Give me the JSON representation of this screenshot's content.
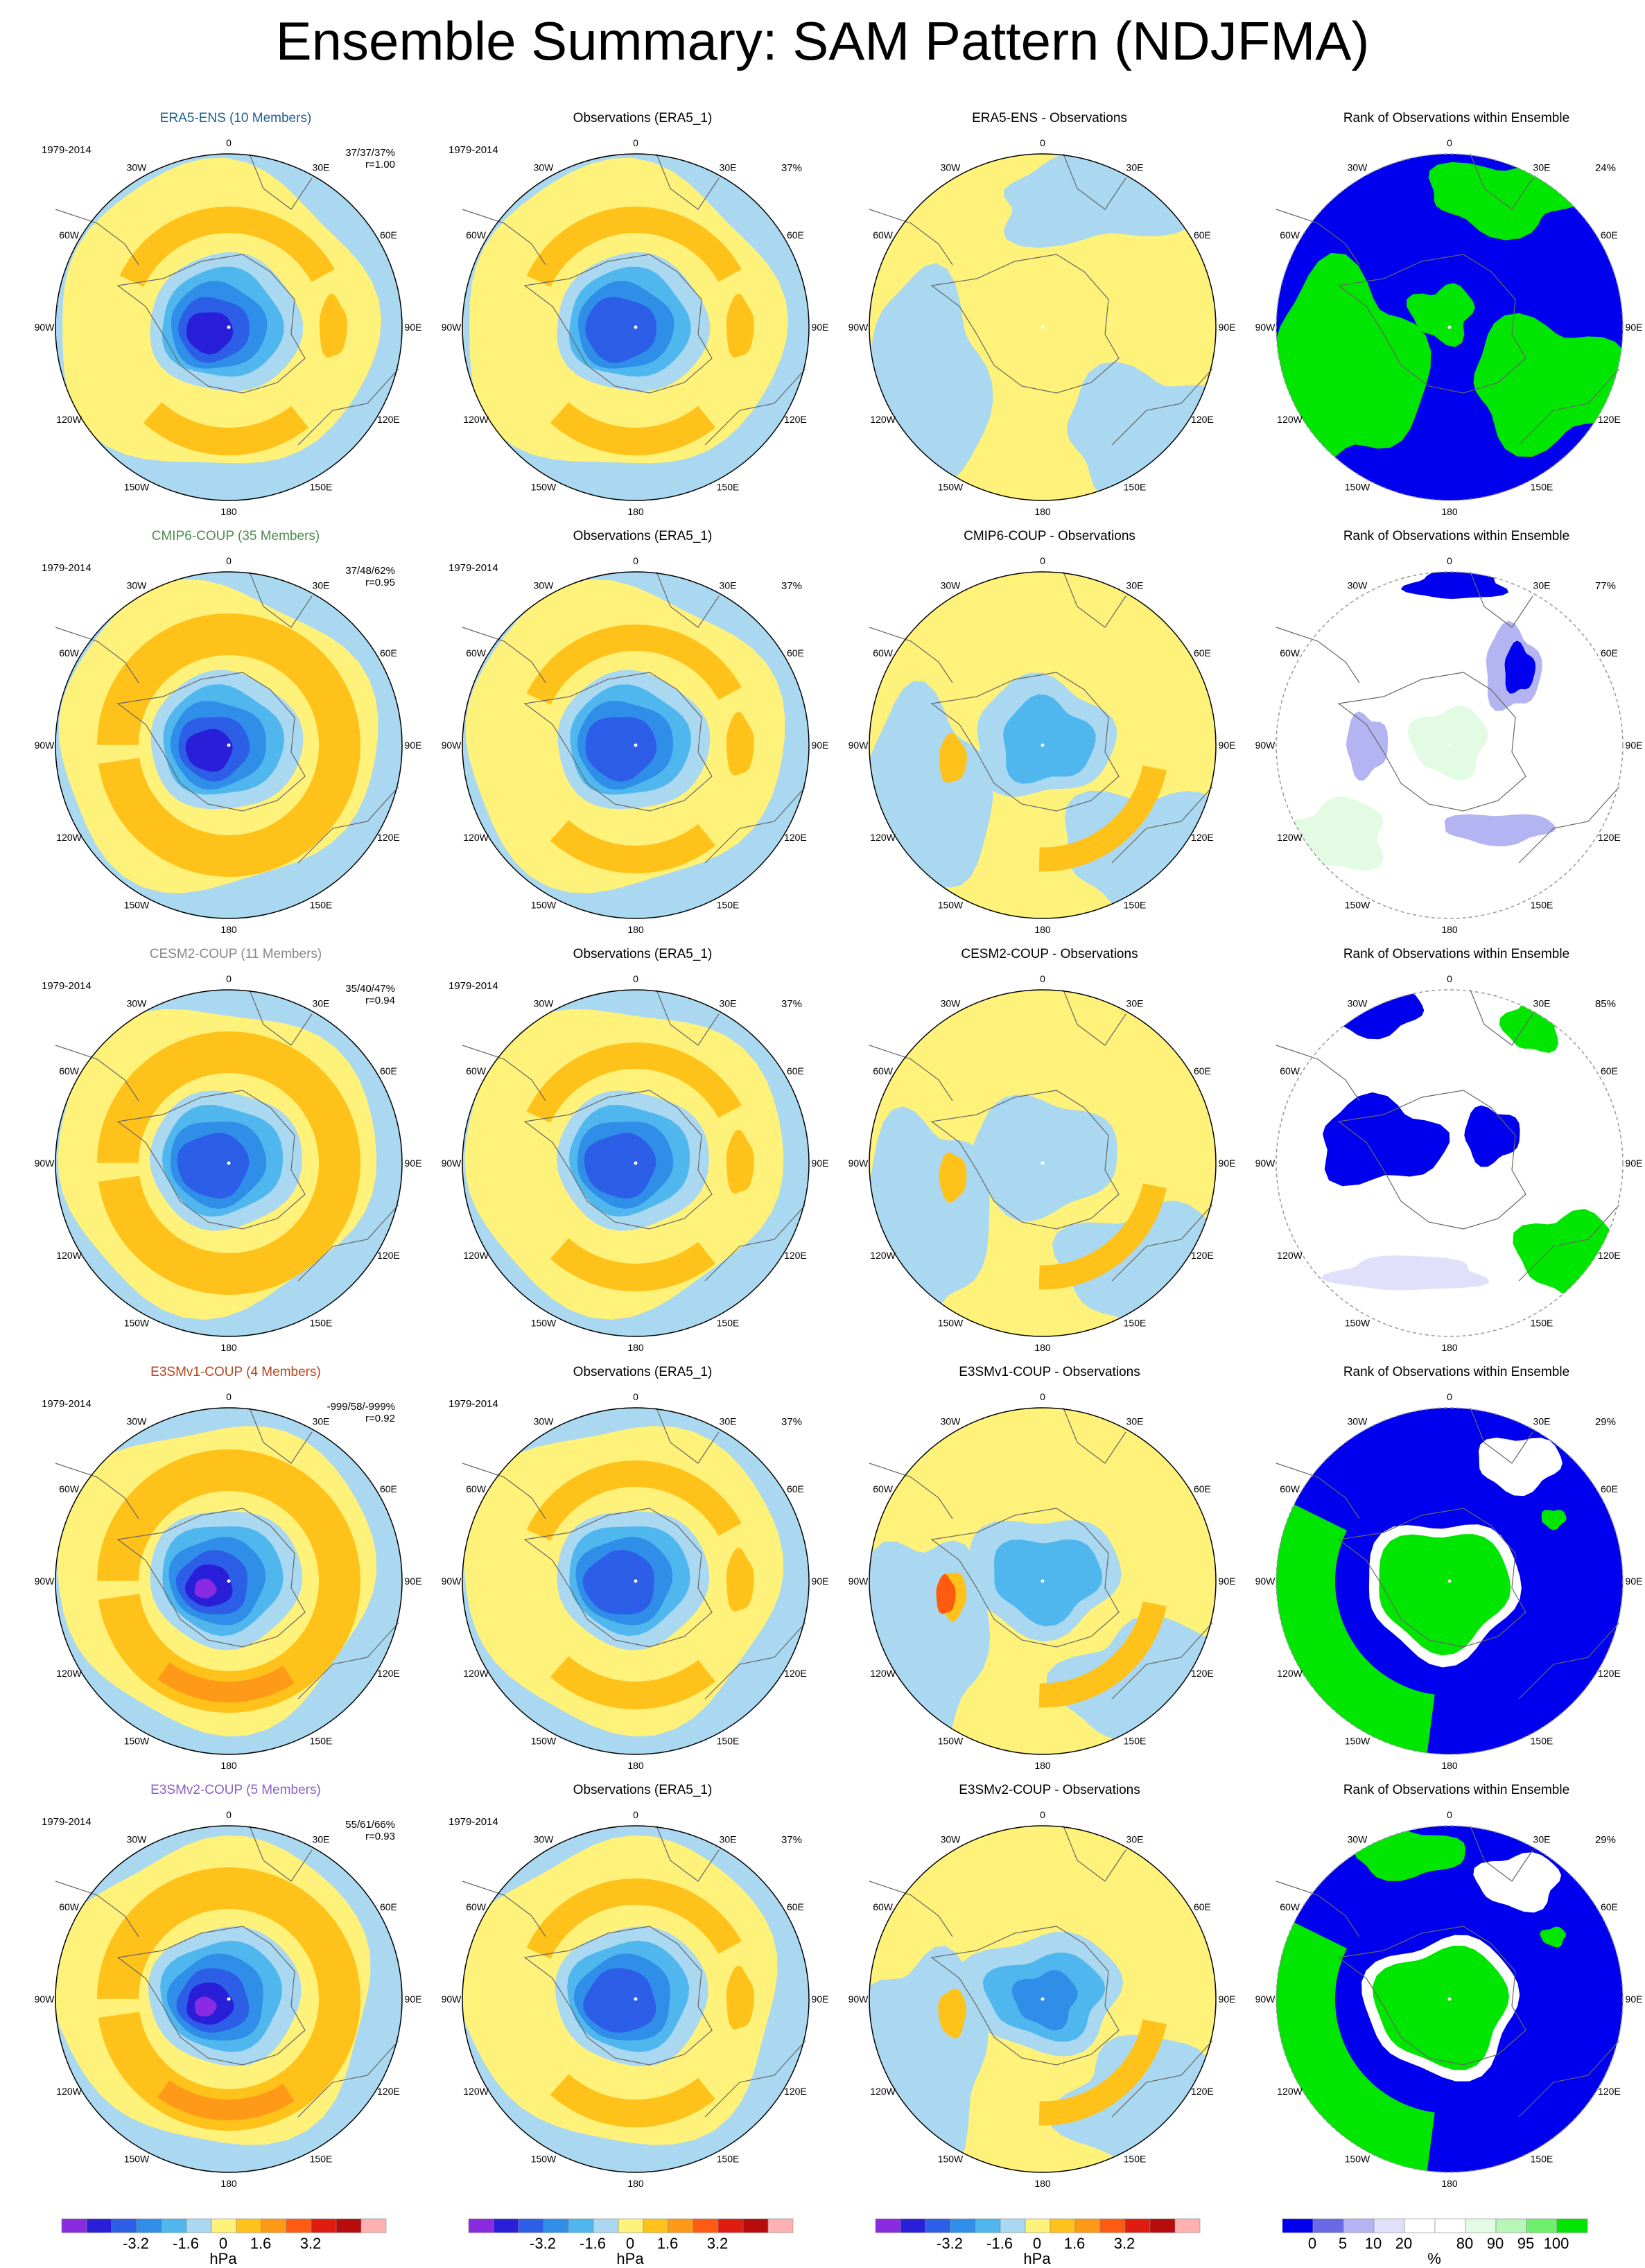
{
  "title": "Ensemble Summary: SAM Pattern (NDJFMA)",
  "period_label": "1979-2014",
  "longitude_labels": [
    "0",
    "30E",
    "60E",
    "90E",
    "120E",
    "150E",
    "180",
    "150W",
    "120W",
    "90W",
    "60W",
    "30W"
  ],
  "rows": [
    {
      "model_title": "ERA5-ENS (10 Members)",
      "model_color": "#1f5f8b",
      "stats_line1": "37/37/37%",
      "stats_line2": "r=1.00",
      "obs_title": "Observations (ERA5_1)",
      "obs_pct": "37%",
      "diff_title": "ERA5-ENS - Observations",
      "rank_title": "Rank of Observations within Ensemble",
      "rank_pct": "24%"
    },
    {
      "model_title": "CMIP6-COUP (35 Members)",
      "model_color": "#4f8a4f",
      "stats_line1": "37/48/62%",
      "stats_line2": "r=0.95",
      "obs_title": "Observations (ERA5_1)",
      "obs_pct": "37%",
      "diff_title": "CMIP6-COUP - Observations",
      "rank_title": "Rank of Observations within Ensemble",
      "rank_pct": "77%"
    },
    {
      "model_title": "CESM2-COUP (11 Members)",
      "model_color": "#888888",
      "stats_line1": "35/40/47%",
      "stats_line2": "r=0.94",
      "obs_title": "Observations (ERA5_1)",
      "obs_pct": "37%",
      "diff_title": "CESM2-COUP - Observations",
      "rank_title": "Rank of Observations within Ensemble",
      "rank_pct": "85%"
    },
    {
      "model_title": "E3SMv1-COUP (4 Members)",
      "model_color": "#b5451b",
      "stats_line1": "-999/58/-999%",
      "stats_line2": "r=0.92",
      "obs_title": "Observations (ERA5_1)",
      "obs_pct": "37%",
      "diff_title": "E3SMv1-COUP - Observations",
      "rank_title": "Rank of Observations within Ensemble",
      "rank_pct": "29%"
    },
    {
      "model_title": "E3SMv2-COUP (5 Members)",
      "model_color": "#8a5fc7",
      "stats_line1": "55/61/66%",
      "stats_line2": "r=0.93",
      "obs_title": "Observations (ERA5_1)",
      "obs_pct": "37%",
      "diff_title": "E3SMv2-COUP - Observations",
      "rank_title": "Rank of Observations within Ensemble",
      "rank_pct": "29%"
    }
  ],
  "colorbar_hpa": {
    "unit": "hPa",
    "colors": [
      "#8a2be2",
      "#2a1fd8",
      "#2d5ee8",
      "#2f8fe8",
      "#4fb7ee",
      "#a9d8f0",
      "#fff27a",
      "#ffc21a",
      "#ff9a18",
      "#ff5a12",
      "#e01b10",
      "#b80c0c",
      "#ffb0b0"
    ],
    "labels": [
      "-3.2",
      "-1.6",
      "0",
      "1.6",
      "3.2"
    ]
  },
  "colorbar_rank": {
    "unit": "%",
    "colors": [
      "#0000ee",
      "#6a6ae6",
      "#b4b4f2",
      "#e0e0fa",
      "#ffffff",
      "#ffffff",
      "#e2fbe2",
      "#b8f5b8",
      "#6ef06e",
      "#00e600"
    ],
    "labels": [
      "0",
      "5",
      "10",
      "20",
      "80",
      "90",
      "95",
      "100"
    ]
  }
}
